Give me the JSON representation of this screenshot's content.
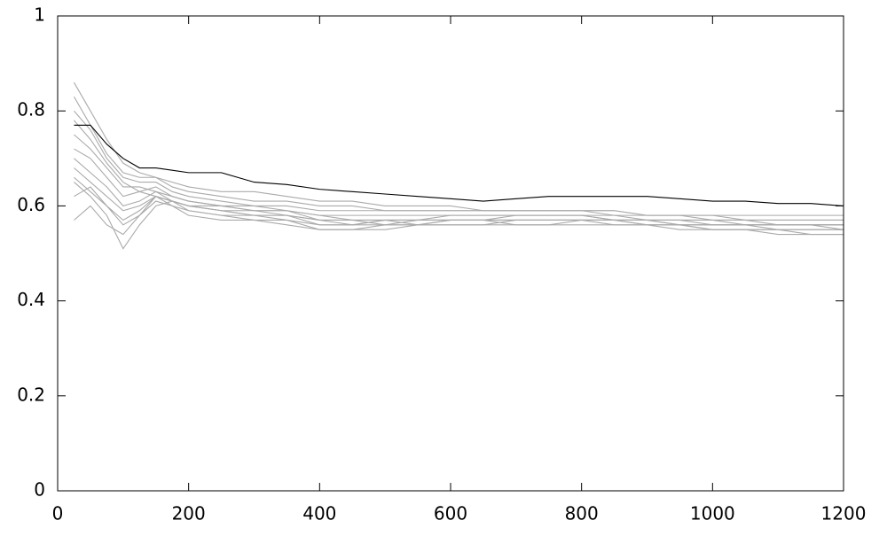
{
  "chart_data": {
    "type": "line",
    "x": [
      25,
      50,
      75,
      100,
      125,
      150,
      175,
      200,
      250,
      300,
      350,
      400,
      450,
      500,
      550,
      600,
      650,
      700,
      750,
      800,
      850,
      900,
      950,
      1000,
      1050,
      1100,
      1150,
      1200
    ],
    "series": [
      {
        "color": "#aaaaaa",
        "values": [
          0.86,
          0.8,
          0.74,
          0.69,
          0.67,
          0.66,
          0.65,
          0.64,
          0.63,
          0.63,
          0.62,
          0.61,
          0.61,
          0.6,
          0.6,
          0.6,
          0.59,
          0.59,
          0.59,
          0.59,
          0.59,
          0.58,
          0.58,
          0.58,
          0.58,
          0.58,
          0.58,
          0.58
        ]
      },
      {
        "color": "#aaaaaa",
        "values": [
          0.57,
          0.6,
          0.56,
          0.54,
          0.58,
          0.62,
          0.61,
          0.6,
          0.59,
          0.58,
          0.57,
          0.56,
          0.56,
          0.57,
          0.57,
          0.57,
          0.57,
          0.57,
          0.57,
          0.57,
          0.57,
          0.56,
          0.56,
          0.56,
          0.56,
          0.56,
          0.56,
          0.56
        ]
      },
      {
        "color": "#aaaaaa",
        "values": [
          0.72,
          0.7,
          0.66,
          0.62,
          0.63,
          0.64,
          0.62,
          0.61,
          0.6,
          0.59,
          0.59,
          0.58,
          0.57,
          0.57,
          0.57,
          0.58,
          0.58,
          0.58,
          0.58,
          0.58,
          0.57,
          0.57,
          0.57,
          0.57,
          0.56,
          0.56,
          0.56,
          0.56
        ]
      },
      {
        "color": "#aaaaaa",
        "values": [
          0.65,
          0.62,
          0.58,
          0.51,
          0.56,
          0.6,
          0.61,
          0.59,
          0.58,
          0.57,
          0.57,
          0.55,
          0.55,
          0.56,
          0.56,
          0.56,
          0.56,
          0.57,
          0.57,
          0.57,
          0.57,
          0.57,
          0.56,
          0.55,
          0.55,
          0.55,
          0.55,
          0.55
        ]
      },
      {
        "color": "#aaaaaa",
        "values": [
          0.8,
          0.76,
          0.7,
          0.66,
          0.65,
          0.65,
          0.63,
          0.62,
          0.61,
          0.6,
          0.6,
          0.59,
          0.59,
          0.59,
          0.59,
          0.59,
          0.59,
          0.59,
          0.59,
          0.59,
          0.58,
          0.58,
          0.58,
          0.57,
          0.57,
          0.57,
          0.57,
          0.57
        ]
      },
      {
        "color": "#aaaaaa",
        "values": [
          0.68,
          0.65,
          0.62,
          0.59,
          0.6,
          0.62,
          0.6,
          0.59,
          0.58,
          0.58,
          0.58,
          0.56,
          0.56,
          0.57,
          0.56,
          0.57,
          0.57,
          0.56,
          0.56,
          0.57,
          0.56,
          0.56,
          0.56,
          0.55,
          0.55,
          0.55,
          0.54,
          0.54
        ]
      },
      {
        "color": "#aaaaaa",
        "values": [
          0.75,
          0.72,
          0.68,
          0.64,
          0.64,
          0.63,
          0.62,
          0.61,
          0.6,
          0.6,
          0.59,
          0.58,
          0.58,
          0.58,
          0.58,
          0.58,
          0.58,
          0.58,
          0.58,
          0.58,
          0.58,
          0.57,
          0.57,
          0.57,
          0.57,
          0.56,
          0.56,
          0.56
        ]
      },
      {
        "color": "#aaaaaa",
        "values": [
          0.62,
          0.64,
          0.6,
          0.56,
          0.58,
          0.61,
          0.6,
          0.58,
          0.57,
          0.57,
          0.56,
          0.55,
          0.55,
          0.55,
          0.56,
          0.56,
          0.56,
          0.56,
          0.56,
          0.56,
          0.56,
          0.56,
          0.55,
          0.55,
          0.55,
          0.54,
          0.54,
          0.54
        ]
      },
      {
        "color": "#aaaaaa",
        "values": [
          0.78,
          0.74,
          0.69,
          0.65,
          0.63,
          0.62,
          0.61,
          0.6,
          0.6,
          0.59,
          0.59,
          0.57,
          0.57,
          0.57,
          0.57,
          0.57,
          0.57,
          0.58,
          0.58,
          0.58,
          0.57,
          0.57,
          0.57,
          0.56,
          0.56,
          0.56,
          0.56,
          0.56
        ]
      },
      {
        "color": "#aaaaaa",
        "values": [
          0.7,
          0.67,
          0.64,
          0.6,
          0.61,
          0.63,
          0.61,
          0.6,
          0.59,
          0.58,
          0.58,
          0.57,
          0.57,
          0.56,
          0.56,
          0.57,
          0.57,
          0.57,
          0.57,
          0.57,
          0.57,
          0.56,
          0.56,
          0.56,
          0.56,
          0.55,
          0.55,
          0.55
        ]
      },
      {
        "color": "#aaaaaa",
        "values": [
          0.83,
          0.77,
          0.71,
          0.67,
          0.66,
          0.66,
          0.64,
          0.63,
          0.62,
          0.61,
          0.61,
          0.6,
          0.6,
          0.59,
          0.59,
          0.59,
          0.59,
          0.59,
          0.59,
          0.59,
          0.59,
          0.58,
          0.58,
          0.58,
          0.57,
          0.57,
          0.57,
          0.57
        ]
      },
      {
        "color": "#aaaaaa",
        "values": [
          0.66,
          0.63,
          0.6,
          0.57,
          0.59,
          0.62,
          0.61,
          0.6,
          0.59,
          0.59,
          0.58,
          0.57,
          0.56,
          0.56,
          0.57,
          0.57,
          0.57,
          0.57,
          0.57,
          0.57,
          0.57,
          0.57,
          0.56,
          0.56,
          0.56,
          0.56,
          0.56,
          0.55
        ]
      },
      {
        "color": "#000000",
        "values": [
          0.77,
          0.77,
          0.73,
          0.7,
          0.68,
          0.68,
          0.675,
          0.67,
          0.67,
          0.65,
          0.645,
          0.635,
          0.63,
          0.625,
          0.62,
          0.615,
          0.61,
          0.615,
          0.62,
          0.62,
          0.62,
          0.62,
          0.615,
          0.61,
          0.61,
          0.605,
          0.605,
          0.6
        ]
      }
    ],
    "xlim": [
      0,
      1200
    ],
    "xticks": [
      0,
      200,
      400,
      600,
      800,
      1000,
      1200
    ],
    "ylim": [
      0,
      1
    ],
    "yticks": [
      0,
      0.2,
      0.4,
      0.6,
      0.8,
      1
    ]
  }
}
